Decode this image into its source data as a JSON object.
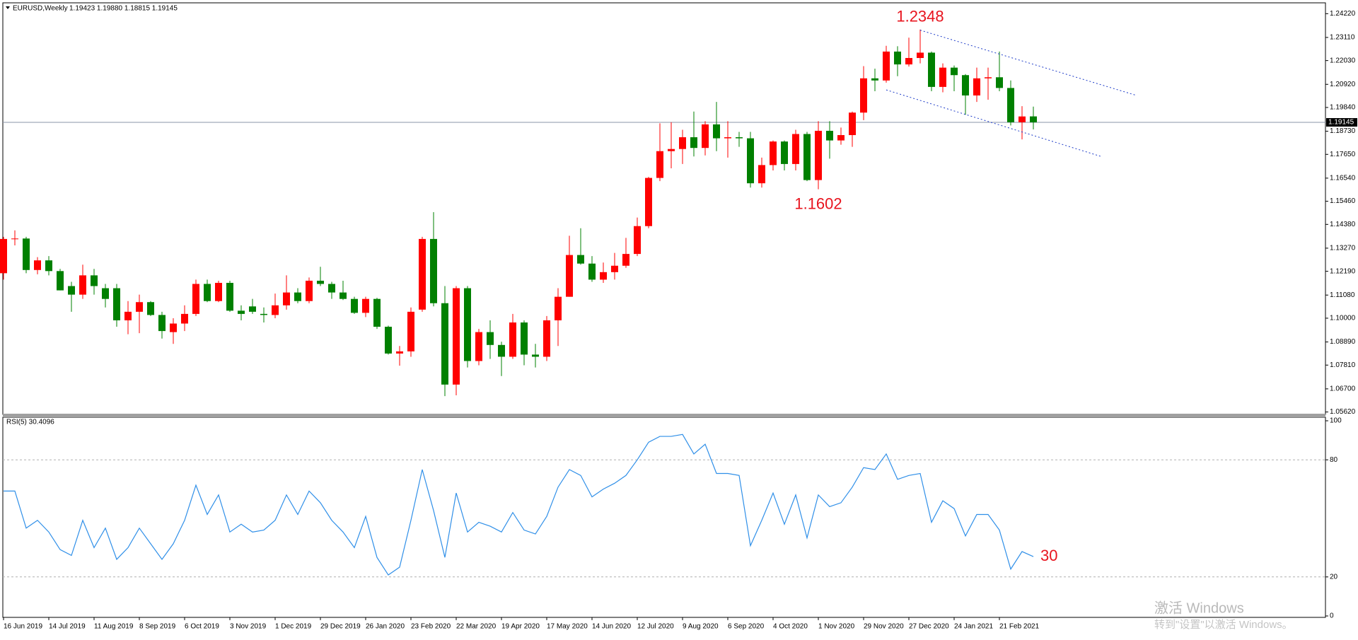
{
  "chart_data": [
    {
      "type": "candlestick",
      "title": "EURUSD,Weekly",
      "subtitle": "1.19423 1.19880 1.18815 1.19145",
      "categories": [
        "16 Jun 2019",
        null,
        null,
        null,
        "14 Jul 2019",
        null,
        null,
        null,
        "11 Aug 2019",
        null,
        null,
        null,
        "8 Sep 2019",
        null,
        null,
        null,
        "6 Oct 2019",
        null,
        null,
        null,
        "3 Nov 2019",
        null,
        null,
        null,
        "1 Dec 2019",
        null,
        null,
        null,
        "29 Dec 2019",
        null,
        null,
        null,
        "26 Jan 2020",
        null,
        null,
        null,
        "23 Feb 2020",
        null,
        null,
        null,
        "22 Mar 2020",
        null,
        null,
        null,
        "19 Apr 2020",
        null,
        null,
        null,
        "17 May 2020",
        null,
        null,
        null,
        "14 Jun 2020",
        null,
        null,
        null,
        "12 Jul 2020",
        null,
        null,
        null,
        "9 Aug 2020",
        null,
        null,
        null,
        "6 Sep 2020",
        null,
        null,
        null,
        "4 Oct 2020",
        null,
        null,
        null,
        "1 Nov 2020",
        null,
        null,
        null,
        "29 Nov 2020",
        null,
        null,
        null,
        "27 Dec 2020",
        null,
        null,
        null,
        "24 Jan 2021",
        null,
        null,
        null,
        "21 Feb 2021",
        null,
        null,
        null
      ],
      "open": [
        1.121,
        1.137,
        1.1372,
        1.1225,
        1.127,
        1.122,
        1.115,
        1.111,
        1.12,
        1.114,
        1.114,
        1.099,
        1.103,
        1.1075,
        1.1015,
        1.0935,
        1.0975,
        1.102,
        1.116,
        1.108,
        1.1165,
        1.1035,
        1.1055,
        1.102,
        1.1015,
        1.106,
        1.112,
        1.108,
        1.1175,
        1.116,
        1.112,
        1.109,
        1.1025,
        1.109,
        1.096,
        1.0835,
        1.0845,
        1.104,
        1.137,
        1.107,
        1.069,
        1.114,
        1.08,
        1.0935,
        1.0875,
        1.082,
        1.098,
        1.083,
        1.082,
        1.099,
        1.11,
        1.1295,
        1.1255,
        1.118,
        1.1215,
        1.1245,
        1.13,
        1.143,
        1.1655,
        1.178,
        1.179,
        1.1845,
        1.1795,
        1.1905,
        1.184,
        1.1845,
        1.184,
        1.163,
        1.1715,
        1.1825,
        1.172,
        1.186,
        1.1645,
        1.1875,
        1.183,
        1.1855,
        1.196,
        1.212,
        1.211,
        1.2245,
        1.2185,
        1.2215,
        1.224,
        1.208,
        1.217,
        1.2135,
        1.204,
        1.212,
        1.2125,
        1.2075,
        1.1915,
        1.19423
      ],
      "high": [
        1.138,
        1.141,
        1.138,
        1.1285,
        1.129,
        1.123,
        1.117,
        1.125,
        1.123,
        1.116,
        1.116,
        1.108,
        1.111,
        1.108,
        1.103,
        1.1,
        1.106,
        1.118,
        1.118,
        1.1175,
        1.1175,
        1.106,
        1.109,
        1.105,
        1.1115,
        1.12,
        1.114,
        1.119,
        1.124,
        1.117,
        1.1175,
        1.11,
        1.11,
        1.1095,
        1.0965,
        1.087,
        1.105,
        1.138,
        1.1495,
        1.115,
        1.115,
        1.115,
        1.095,
        1.099,
        1.089,
        1.102,
        1.099,
        1.088,
        1.101,
        1.114,
        1.1385,
        1.142,
        1.129,
        1.126,
        1.1305,
        1.1375,
        1.147,
        1.166,
        1.191,
        1.1915,
        1.188,
        1.1965,
        1.192,
        1.201,
        1.192,
        1.187,
        1.187,
        1.175,
        1.183,
        1.183,
        1.188,
        1.187,
        1.192,
        1.192,
        1.189,
        1.1965,
        1.2177,
        1.2165,
        1.2272,
        1.227,
        1.231,
        1.2348,
        1.2245,
        1.219,
        1.218,
        1.214,
        1.217,
        1.217,
        1.2245,
        1.211,
        1.199,
        1.1988
      ],
      "low": [
        1.118,
        1.134,
        1.121,
        1.1205,
        1.12,
        1.113,
        1.103,
        1.109,
        1.111,
        1.105,
        1.096,
        1.0925,
        1.093,
        1.101,
        1.0905,
        1.088,
        1.094,
        1.101,
        1.1075,
        1.1075,
        1.103,
        1.099,
        1.102,
        1.098,
        1.1,
        1.104,
        1.107,
        1.107,
        1.115,
        1.109,
        1.1085,
        1.102,
        1.1005,
        1.095,
        1.083,
        1.0778,
        1.082,
        1.103,
        1.1055,
        1.0636,
        1.064,
        1.077,
        1.078,
        1.081,
        1.073,
        1.081,
        1.078,
        1.077,
        1.08,
        1.087,
        1.11,
        1.125,
        1.117,
        1.1165,
        1.118,
        1.1235,
        1.129,
        1.142,
        1.164,
        1.17,
        1.172,
        1.1755,
        1.176,
        1.178,
        1.175,
        1.18,
        1.161,
        1.161,
        1.169,
        1.169,
        1.169,
        1.164,
        1.1602,
        1.1745,
        1.181,
        1.18,
        1.1925,
        1.206,
        1.21,
        1.213,
        1.2175,
        1.219,
        1.206,
        1.2055,
        1.206,
        1.195,
        1.201,
        1.202,
        1.206,
        1.19,
        1.1835,
        1.18815
      ],
      "close": [
        1.137,
        1.1372,
        1.1225,
        1.127,
        1.122,
        1.113,
        1.111,
        1.12,
        1.115,
        1.109,
        1.099,
        1.103,
        1.1075,
        1.1015,
        1.094,
        1.0975,
        1.102,
        1.116,
        1.108,
        1.1165,
        1.1035,
        1.102,
        1.103,
        1.1015,
        1.106,
        1.112,
        1.108,
        1.1175,
        1.116,
        1.112,
        1.109,
        1.1025,
        1.109,
        1.096,
        1.0835,
        1.0845,
        1.103,
        1.137,
        1.107,
        1.069,
        1.114,
        1.08,
        1.0935,
        1.0875,
        1.082,
        1.098,
        1.083,
        1.082,
        1.099,
        1.11,
        1.1295,
        1.1255,
        1.118,
        1.1215,
        1.1245,
        1.13,
        1.143,
        1.1655,
        1.178,
        1.179,
        1.1845,
        1.1795,
        1.1905,
        1.184,
        1.1845,
        1.184,
        1.163,
        1.1715,
        1.1825,
        1.172,
        1.186,
        1.1645,
        1.1875,
        1.183,
        1.1855,
        1.196,
        1.212,
        1.211,
        1.2245,
        1.2185,
        1.2215,
        1.224,
        1.208,
        1.217,
        1.2135,
        1.204,
        1.212,
        1.2125,
        1.2075,
        1.1915,
        1.1942,
        1.19145
      ],
      "up_color": "#ff0000",
      "down_color": "#008000",
      "ylim": [
        1.0554,
        1.2466
      ],
      "yticks": [
        {
          "value": 1.2422,
          "label": "1.24220"
        },
        {
          "value": 1.2311,
          "label": "1.23110"
        },
        {
          "value": 1.2203,
          "label": "1.22030"
        },
        {
          "value": 1.2092,
          "label": "1.20920"
        },
        {
          "value": 1.1984,
          "label": "1.19840"
        },
        {
          "value": 1.1873,
          "label": "1.18730"
        },
        {
          "value": 1.1765,
          "label": "1.17650"
        },
        {
          "value": 1.1654,
          "label": "1.16540"
        },
        {
          "value": 1.1546,
          "label": "1.15460"
        },
        {
          "value": 1.1438,
          "label": "1.14380"
        },
        {
          "value": 1.1327,
          "label": "1.13270"
        },
        {
          "value": 1.1219,
          "label": "1.12190"
        },
        {
          "value": 1.1108,
          "label": "1.11080"
        },
        {
          "value": 1.1,
          "label": "1.10000"
        },
        {
          "value": 1.0889,
          "label": "1.08890"
        },
        {
          "value": 1.0781,
          "label": "1.07810"
        },
        {
          "value": 1.067,
          "label": "1.06700"
        },
        {
          "value": 1.0562,
          "label": "1.05620"
        }
      ],
      "current_price": {
        "value": 1.19145,
        "label": "1.19145"
      },
      "trendlines": [
        {
          "x": [
            81,
            100
          ],
          "y": [
            1.2345,
            1.2042
          ]
        },
        {
          "x": [
            78,
            97
          ],
          "y": [
            1.2066,
            1.1755
          ]
        }
      ],
      "trendline_color": "#1e3cc8",
      "annotations": [
        {
          "text": "1.2348",
          "x": 81,
          "y": 1.2348,
          "position": "above"
        },
        {
          "text": "1.1602",
          "x": 72,
          "y": 1.1602,
          "position": "below"
        }
      ],
      "annotation_color": "#e8141e"
    },
    {
      "type": "line",
      "title": "RSI(5) 30.4096",
      "values": [
        64,
        64,
        45,
        49,
        43,
        34,
        31,
        49,
        35,
        45,
        29,
        35,
        45,
        37,
        29,
        37,
        49,
        67,
        52,
        62,
        43,
        47,
        43,
        44,
        49,
        62,
        52,
        64,
        58,
        49,
        43,
        35,
        51,
        30,
        21,
        25,
        49,
        75,
        54,
        30,
        63,
        43,
        48,
        46,
        43,
        53,
        44,
        42,
        51,
        66,
        75,
        72,
        61,
        65,
        68,
        72,
        80,
        89,
        92,
        92,
        93,
        83,
        88,
        73,
        73,
        72,
        36,
        49,
        63,
        47,
        62,
        40,
        62,
        56,
        58,
        66,
        76,
        75,
        83,
        70,
        72,
        73,
        48,
        59,
        55,
        41,
        52,
        52,
        44,
        24,
        33,
        30.4096
      ],
      "color": "#2f8fe8",
      "ylim": [
        0,
        100
      ],
      "yticks": [
        0,
        20,
        80,
        100
      ],
      "levels": [
        20,
        80
      ],
      "annotations": [
        {
          "text": "30",
          "x": 91,
          "y": 30.4096,
          "position": "right"
        }
      ],
      "annotation_color": "#e8141e"
    }
  ],
  "watermark": {
    "title": "激活 Windows",
    "subtitle": "转到\"设置\"以激活 Windows。"
  }
}
